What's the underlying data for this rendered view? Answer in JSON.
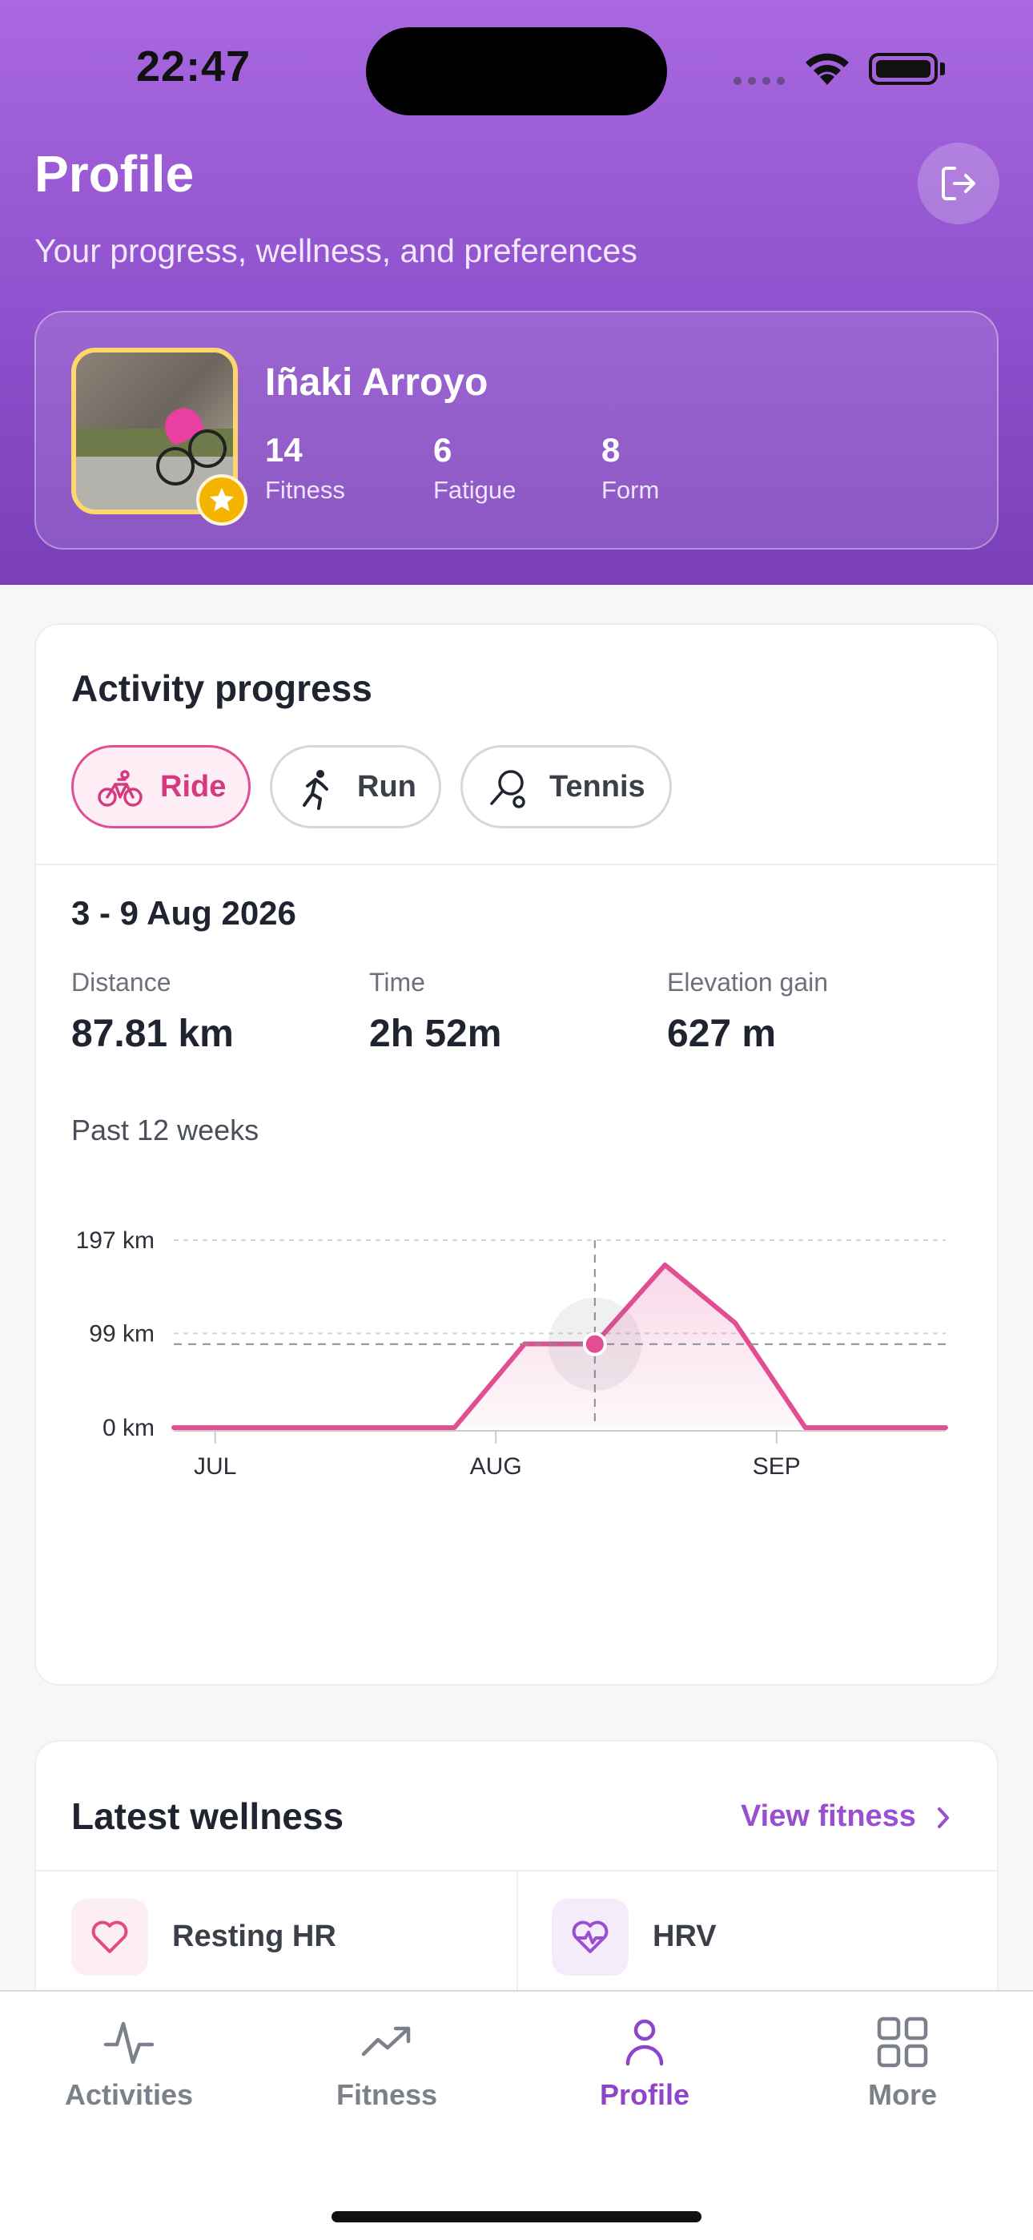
{
  "status_bar": {
    "time": "22:47"
  },
  "header": {
    "title": "Profile",
    "subtitle": "Your progress, wellness, and preferences",
    "logout_icon": "logout-icon"
  },
  "athlete": {
    "name": "Iñaki Arroyo",
    "stats": [
      {
        "value": "14",
        "label": "Fitness"
      },
      {
        "value": "6",
        "label": "Fatigue"
      },
      {
        "value": "8",
        "label": "Form"
      }
    ]
  },
  "activity_progress": {
    "title": "Activity progress",
    "chips": [
      {
        "label": "Ride",
        "icon": "bike-icon",
        "active": true
      },
      {
        "label": "Run",
        "icon": "run-icon",
        "active": false
      },
      {
        "label": "Tennis",
        "icon": "tennis-icon",
        "active": false
      }
    ],
    "week": "3 - 9 Aug 2026",
    "metrics": [
      {
        "label": "Distance",
        "value": "87.81 km"
      },
      {
        "label": "Time",
        "value": "2h 52m"
      },
      {
        "label": "Elevation gain",
        "value": "627 m"
      }
    ],
    "past_label": "Past 12 weeks"
  },
  "chart_data": {
    "type": "area",
    "y_tick_labels": [
      "197 km",
      "99 km",
      "0 km"
    ],
    "y_ticks": [
      197,
      99,
      0
    ],
    "x_tick_labels": [
      "JUL",
      "AUG",
      "SEP"
    ],
    "x_tick_index": [
      1,
      5,
      9
    ],
    "values": [
      0,
      0,
      0,
      0,
      0,
      88,
      88,
      171,
      110,
      0,
      0,
      0
    ],
    "selected_index": 6,
    "selected_value": 87.81,
    "ylim": [
      0,
      197
    ],
    "grid": true,
    "color": "#e24e92"
  },
  "wellness": {
    "title": "Latest wellness",
    "view_link": "View fitness",
    "items": [
      {
        "label": "Resting HR",
        "icon": "heart-icon"
      },
      {
        "label": "HRV",
        "icon": "heart-pulse-icon"
      }
    ]
  },
  "tabbar": {
    "tabs": [
      {
        "label": "Activities",
        "icon": "activity-icon",
        "active": false
      },
      {
        "label": "Fitness",
        "icon": "trend-icon",
        "active": false
      },
      {
        "label": "Profile",
        "icon": "person-icon",
        "active": true
      },
      {
        "label": "More",
        "icon": "grid-icon",
        "active": false
      }
    ]
  },
  "colors": {
    "accent": "#8f45c9",
    "chart_pink": "#e24e92",
    "header_top": "#a968e0",
    "header_bottom": "#7a3fb8"
  }
}
